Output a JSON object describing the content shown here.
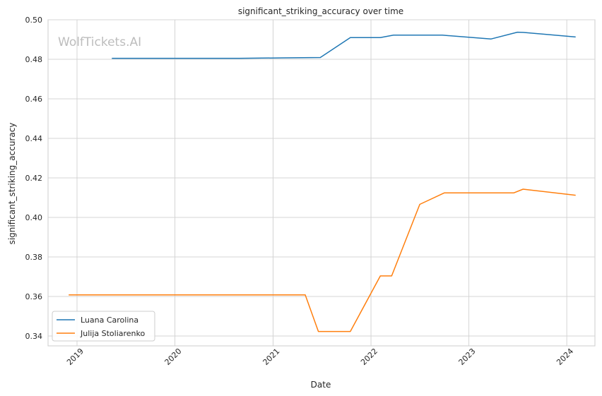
{
  "chart_data": {
    "type": "line",
    "title": "significant_striking_accuracy over time",
    "xlabel": "Date",
    "ylabel": "significant_striking_accuracy",
    "watermark": "WolfTickets.AI",
    "x_axis_type": "date",
    "xlim": [
      "2018-09-15",
      "2024-04-15"
    ],
    "ylim": [
      0.335,
      0.5
    ],
    "x_ticks": [
      {
        "date": "2019-01-01",
        "label": "2019"
      },
      {
        "date": "2020-01-01",
        "label": "2020"
      },
      {
        "date": "2021-01-01",
        "label": "2021"
      },
      {
        "date": "2022-01-01",
        "label": "2022"
      },
      {
        "date": "2023-01-01",
        "label": "2023"
      },
      {
        "date": "2024-01-01",
        "label": "2024"
      }
    ],
    "y_ticks": [
      {
        "value": 0.34,
        "label": "0.34"
      },
      {
        "value": 0.36,
        "label": "0.36"
      },
      {
        "value": 0.38,
        "label": "0.38"
      },
      {
        "value": 0.4,
        "label": "0.40"
      },
      {
        "value": 0.42,
        "label": "0.42"
      },
      {
        "value": 0.44,
        "label": "0.44"
      },
      {
        "value": 0.46,
        "label": "0.46"
      },
      {
        "value": 0.48,
        "label": "0.48"
      },
      {
        "value": 0.5,
        "label": "0.50"
      }
    ],
    "grid": true,
    "legend_position": "lower-left",
    "series": [
      {
        "name": "Luana Carolina",
        "color": "#1f77b4",
        "points": [
          {
            "x": "2019-05-11",
            "y": 0.4805
          },
          {
            "x": "2020-08-29",
            "y": 0.4805
          },
          {
            "x": "2021-02-06",
            "y": 0.4807
          },
          {
            "x": "2021-06-26",
            "y": 0.4809
          },
          {
            "x": "2021-10-16",
            "y": 0.491
          },
          {
            "x": "2022-02-05",
            "y": 0.491
          },
          {
            "x": "2022-03-26",
            "y": 0.4922
          },
          {
            "x": "2022-09-24",
            "y": 0.4922
          },
          {
            "x": "2023-03-25",
            "y": 0.4903
          },
          {
            "x": "2023-07-01",
            "y": 0.4937
          },
          {
            "x": "2023-07-22",
            "y": 0.4936
          },
          {
            "x": "2024-02-03",
            "y": 0.4913
          }
        ]
      },
      {
        "name": "Julija Stoliarenko",
        "color": "#ff7f0e",
        "points": [
          {
            "x": "2018-12-01",
            "y": 0.3608
          },
          {
            "x": "2021-05-01",
            "y": 0.3608
          },
          {
            "x": "2021-06-19",
            "y": 0.3423
          },
          {
            "x": "2021-10-16",
            "y": 0.3423
          },
          {
            "x": "2022-02-05",
            "y": 0.3704
          },
          {
            "x": "2022-03-19",
            "y": 0.3704
          },
          {
            "x": "2022-07-02",
            "y": 0.4066
          },
          {
            "x": "2022-10-01",
            "y": 0.4124
          },
          {
            "x": "2023-06-17",
            "y": 0.4124
          },
          {
            "x": "2023-07-22",
            "y": 0.4143
          },
          {
            "x": "2024-02-03",
            "y": 0.4112
          }
        ]
      }
    ]
  }
}
